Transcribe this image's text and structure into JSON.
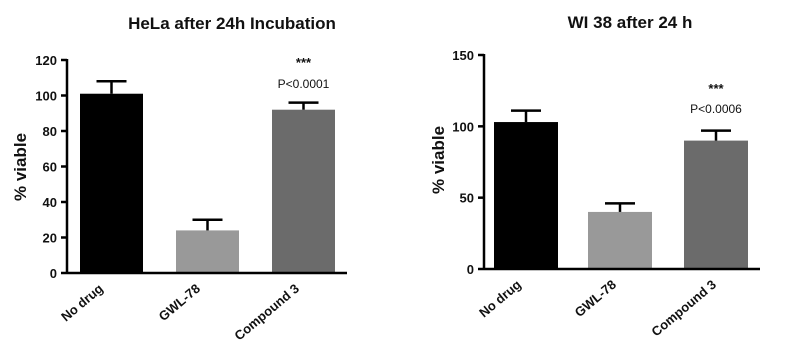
{
  "chart_data": [
    {
      "type": "bar",
      "title": "HeLa after 24h Incubation",
      "ylabel": "% viable",
      "categories": [
        "No drug",
        "GWL-78",
        "Compound 3"
      ],
      "values": [
        101,
        24,
        92
      ],
      "errors": [
        7,
        6,
        4
      ],
      "colors": [
        "#000000",
        "#999999",
        "#6b6b6b"
      ],
      "ylim": [
        0,
        120
      ],
      "yticks": [
        "0",
        "20",
        "40",
        "60",
        "80",
        "100",
        "120"
      ],
      "significance": {
        "category": "Compound 3",
        "stars": "***",
        "p_label": "P<0.0001"
      }
    },
    {
      "type": "bar",
      "title": "WI 38 after 24 h",
      "ylabel": "% viable",
      "categories": [
        "No drug",
        "GWL-78",
        "Compound 3"
      ],
      "values": [
        103,
        40,
        90
      ],
      "errors": [
        8,
        6,
        7
      ],
      "colors": [
        "#000000",
        "#999999",
        "#6b6b6b"
      ],
      "ylim": [
        0,
        150
      ],
      "yticks": [
        "0",
        "50",
        "100",
        "150"
      ],
      "significance": {
        "category": "Compound 3",
        "stars": "***",
        "p_label": "P<0.0006"
      }
    }
  ]
}
